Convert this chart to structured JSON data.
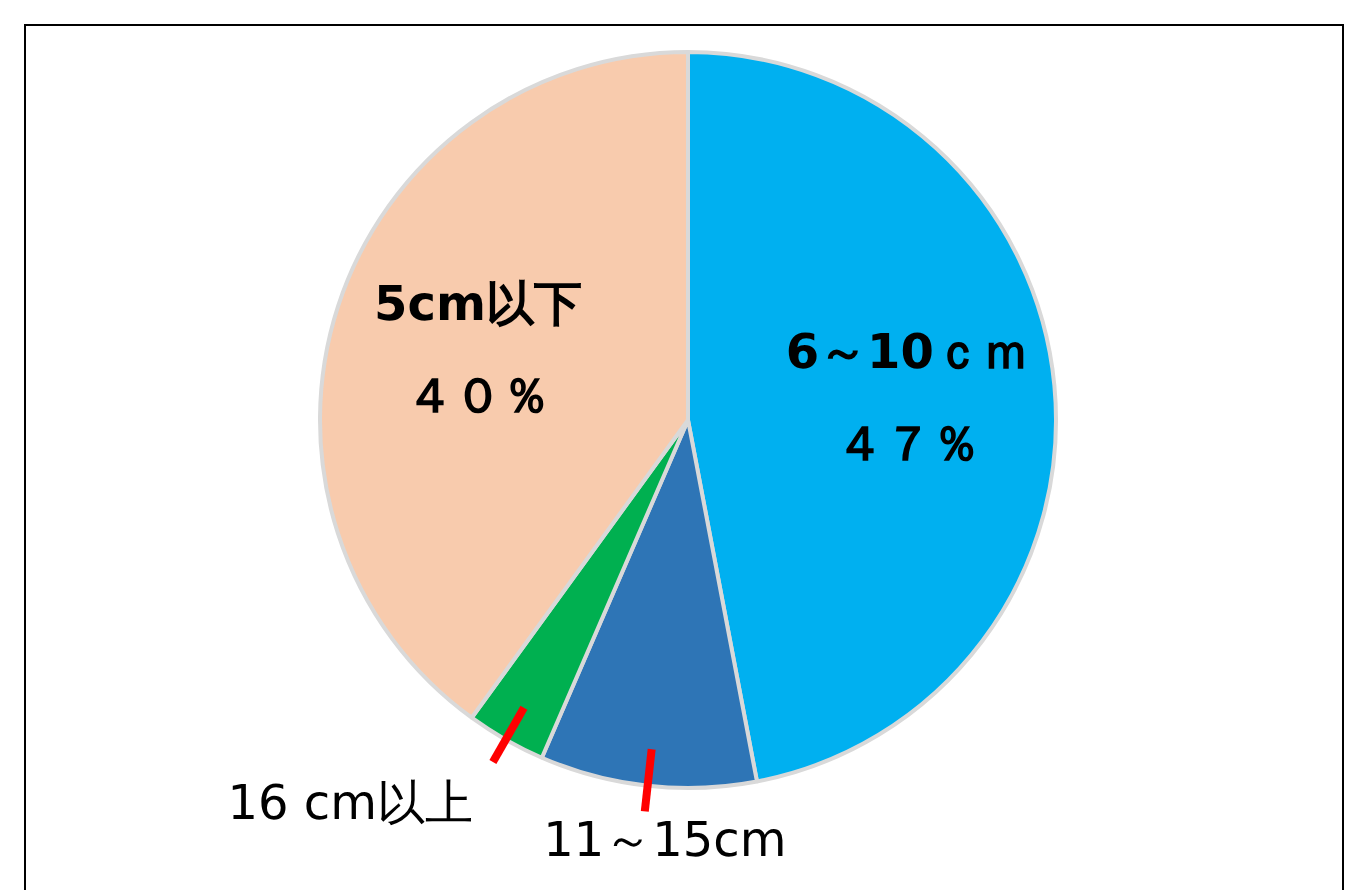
{
  "chart_data": {
    "type": "pie",
    "categories": [
      "6～10ｃｍ",
      "11～15cm",
      "16 cm以上",
      "5cm以下"
    ],
    "values": [
      47,
      9.5,
      3.5,
      40
    ],
    "value_labels": [
      "４７％",
      null,
      null,
      "４０％"
    ],
    "colors": [
      "#00b0f0",
      "#2e75b6",
      "#00b050",
      "#f8cbad"
    ],
    "legend": false
  }
}
